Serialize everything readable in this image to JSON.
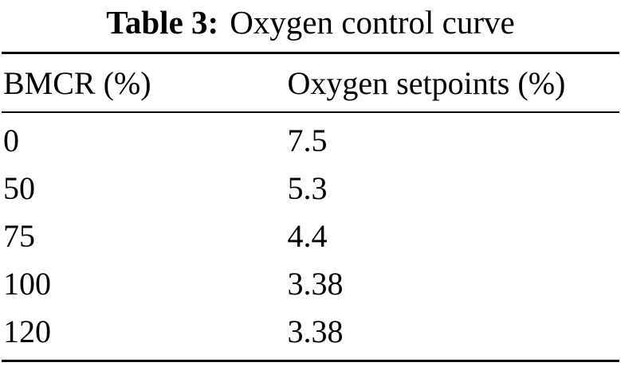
{
  "caption": {
    "label": "Table 3:",
    "title": "Oxygen control curve"
  },
  "table": {
    "headers": [
      "BMCR (%)",
      "Oxygen setpoints (%)"
    ],
    "rows": [
      [
        "0",
        "7.5"
      ],
      [
        "50",
        "5.3"
      ],
      [
        "75",
        "4.4"
      ],
      [
        "100",
        "3.38"
      ],
      [
        "120",
        "3.38"
      ]
    ]
  }
}
